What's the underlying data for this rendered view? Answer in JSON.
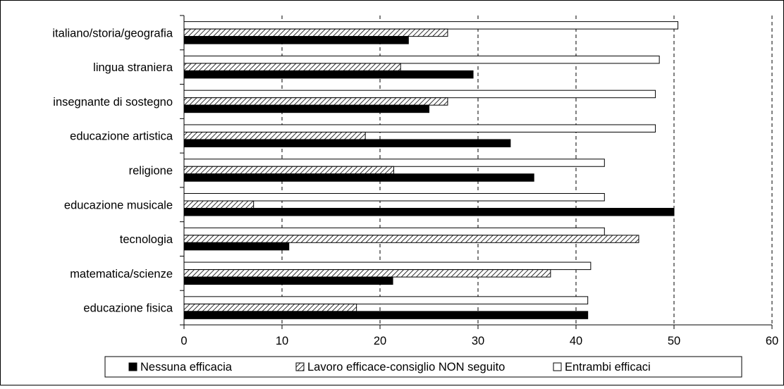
{
  "chart_data": {
    "type": "bar",
    "orientation": "horizontal",
    "title": "",
    "xlabel": "",
    "ylabel": "",
    "xlim": [
      0,
      60
    ],
    "xticks": [
      0,
      10,
      20,
      30,
      40,
      50,
      60
    ],
    "grid": "vertical dashed",
    "legend_position": "bottom",
    "categories": [
      "italiano/storia/geografia",
      "lingua straniera",
      "insegnante di sostegno",
      "educazione artistica",
      "religione",
      "educazione musicale",
      "tecnologia",
      "matematica/scienze",
      "educazione fisica"
    ],
    "series": [
      {
        "name": "Entrambi efficaci",
        "pattern": "empty",
        "color": "#ffffff",
        "values": [
          50.4,
          48.5,
          48.1,
          48.1,
          42.9,
          42.9,
          42.9,
          41.5,
          41.2
        ]
      },
      {
        "name": "Lavoro efficace-consiglio NON seguito",
        "pattern": "hatched",
        "color": "#ffffff",
        "values": [
          26.9,
          22.1,
          26.9,
          18.5,
          21.4,
          7.1,
          46.4,
          37.4,
          17.6
        ]
      },
      {
        "name": "Nessuna efficacia",
        "pattern": "solid",
        "color": "#000000",
        "values": [
          22.9,
          29.5,
          25.0,
          33.3,
          35.7,
          50.0,
          10.7,
          21.3,
          41.2
        ]
      }
    ],
    "legend_order": [
      "Nessuna efficacia",
      "Lavoro efficace-consiglio NON seguito",
      "Entrambi efficaci"
    ]
  }
}
